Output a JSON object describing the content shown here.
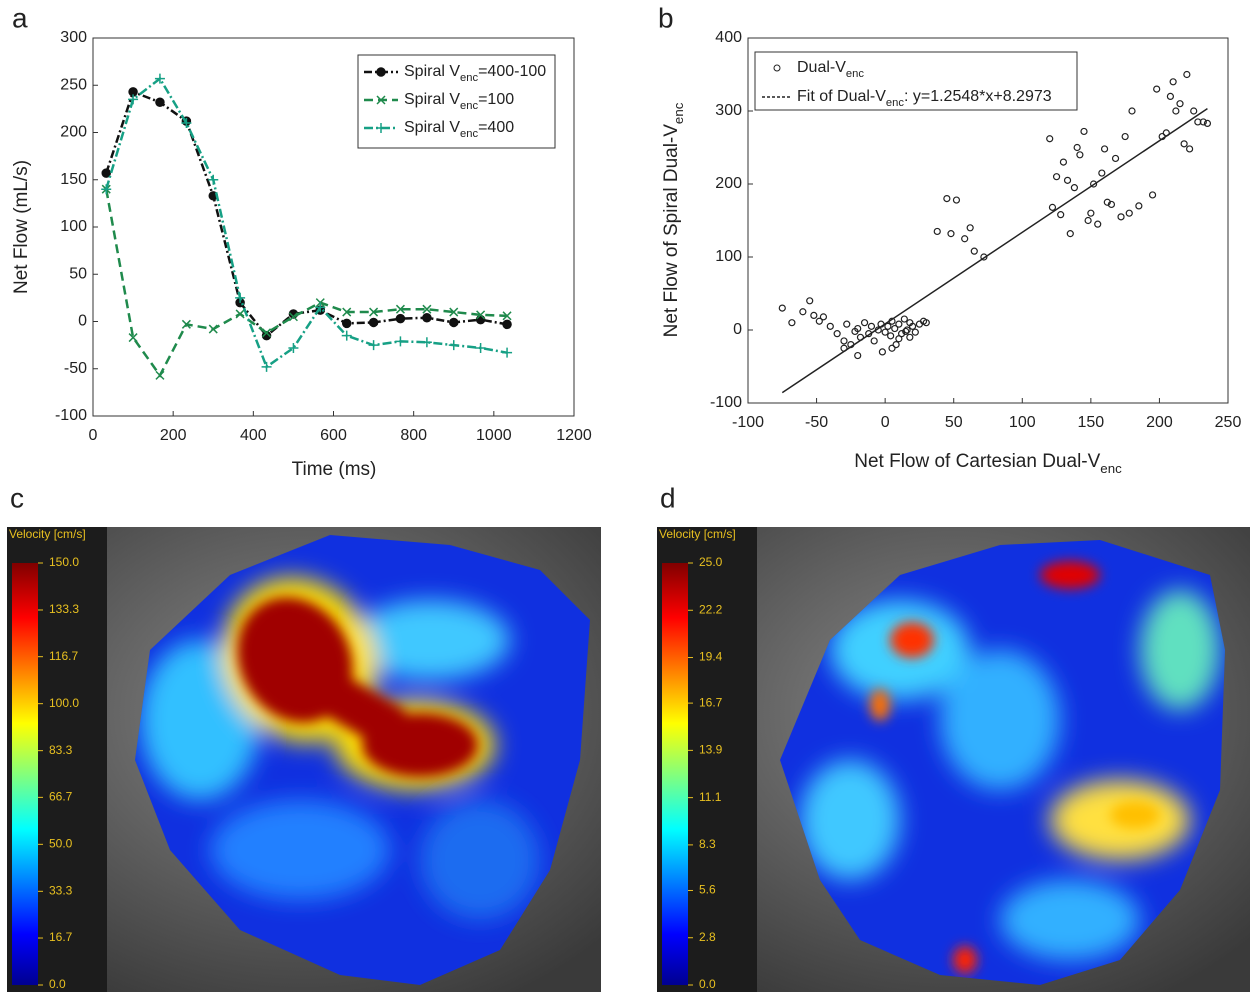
{
  "chart_data": [
    {
      "type": "line",
      "panel": "a",
      "x_label": "Time (ms)",
      "y_label": "Net Flow (mL/s)",
      "xlim": [
        0,
        1200
      ],
      "xticks": [
        0,
        200,
        400,
        600,
        800,
        1000,
        1200
      ],
      "ylim": [
        -100,
        300
      ],
      "yticks": [
        -100,
        -50,
        0,
        50,
        100,
        150,
        200,
        250,
        300
      ],
      "x": [
        33,
        100,
        167,
        233,
        300,
        367,
        433,
        500,
        567,
        633,
        700,
        767,
        833,
        900,
        967,
        1033
      ],
      "series": [
        {
          "name": "Spiral V",
          "name_sub": "enc",
          "name_after": "=400-100",
          "color": "#111111",
          "dash": "8,3,2,3",
          "marker": "circle",
          "values": [
            157,
            243,
            232,
            212,
            133,
            20,
            -15,
            8,
            12,
            -2,
            -1,
            3,
            4,
            -1,
            2,
            -3
          ]
        },
        {
          "name": "Spiral V",
          "name_sub": "enc",
          "name_after": "=100",
          "color": "#1f8a4c",
          "dash": "9,5",
          "marker": "x",
          "values": [
            140,
            -17,
            -57,
            -3,
            -8,
            8,
            -12,
            5,
            20,
            10,
            10,
            13,
            13,
            10,
            7,
            6
          ]
        },
        {
          "name": "Spiral V",
          "name_sub": "enc",
          "name_after": "=400",
          "color": "#16a085",
          "dash": "9,3,2,3",
          "marker": "plus",
          "values": [
            140,
            235,
            257,
            210,
            150,
            25,
            -48,
            -28,
            15,
            -15,
            -25,
            -21,
            -22,
            -25,
            -28,
            -33
          ]
        }
      ]
    },
    {
      "type": "scatter",
      "panel": "b",
      "x_label": "Net Flow of Cartesian Dual-V",
      "x_label_sub": "enc",
      "y_label": "Net Flow of Spiral Dual-V",
      "y_label_sub": "enc",
      "xlim": [
        -100,
        250
      ],
      "xticks": [
        -100,
        -50,
        0,
        50,
        100,
        150,
        200,
        250
      ],
      "ylim": [
        -100,
        400
      ],
      "yticks": [
        -100,
        0,
        100,
        200,
        300,
        400
      ],
      "series": [
        {
          "name": "Dual-V",
          "name_sub": "enc",
          "color": "#222222",
          "marker": "circle",
          "x": [
            -75,
            -68,
            -60,
            -55,
            -52,
            -48,
            -45,
            -40,
            -35,
            -30,
            -28,
            -25,
            -22,
            -20,
            -18,
            -15,
            -12,
            -10,
            -8,
            -5,
            -3,
            0,
            2,
            4,
            5,
            7,
            8,
            10,
            12,
            14,
            16,
            18,
            20,
            22,
            25,
            28,
            30,
            -30,
            -20,
            -2,
            5,
            10,
            15,
            18,
            38,
            45,
            48,
            52,
            58,
            62,
            65,
            72,
            120,
            122,
            125,
            128,
            130,
            133,
            135,
            138,
            140,
            142,
            145,
            148,
            150,
            152,
            155,
            158,
            160,
            162,
            165,
            168,
            172,
            175,
            178,
            180,
            185,
            195,
            198,
            202,
            205,
            208,
            210,
            212,
            215,
            218,
            220,
            222,
            225,
            228,
            232,
            235
          ],
          "values": [
            30,
            10,
            25,
            40,
            20,
            12,
            18,
            5,
            -5,
            -15,
            8,
            -20,
            -2,
            2,
            -10,
            10,
            -5,
            5,
            -15,
            0,
            8,
            -3,
            5,
            -8,
            12,
            2,
            -20,
            8,
            -5,
            15,
            0,
            -10,
            5,
            -3,
            8,
            12,
            10,
            -25,
            -35,
            -30,
            -25,
            -12,
            -2,
            10,
            135,
            180,
            132,
            178,
            125,
            140,
            108,
            100,
            262,
            168,
            210,
            158,
            230,
            205,
            132,
            195,
            250,
            240,
            272,
            150,
            160,
            200,
            145,
            215,
            248,
            175,
            172,
            235,
            155,
            265,
            160,
            300,
            170,
            185,
            330,
            265,
            270,
            320,
            340,
            300,
            310,
            255,
            350,
            248,
            300,
            285,
            285,
            283
          ]
        },
        {
          "name": "Fit of Dual-V",
          "name_sub": "enc",
          "name_after": ": y=1.2548*x+8.2973",
          "color": "#222222",
          "style": "line",
          "x": [
            -75,
            235
          ],
          "values": [
            -85.8,
            303.2
          ]
        }
      ]
    },
    {
      "type": "image",
      "panel": "c",
      "colorbar_label": "Velocity [cm/s]",
      "clim": [
        0,
        150
      ],
      "colorbar_ticks": [
        {
          "value": 150,
          "label": "150.0"
        },
        133.3,
        116.7,
        {
          "value": 100,
          "label": "100.0"
        },
        83.3,
        66.7,
        {
          "value": 50,
          "label": "50.0"
        },
        33.3,
        16.7,
        {
          "value": 0,
          "label": "0.0"
        }
      ]
    },
    {
      "type": "image",
      "panel": "d",
      "colorbar_label": "Velocity [cm/s]",
      "clim": [
        0,
        25
      ],
      "colorbar_ticks": [
        {
          "value": 25,
          "label": "25.0"
        },
        22.2,
        19.4,
        16.7,
        13.9,
        11.1,
        8.3,
        5.6,
        2.8,
        {
          "value": 0,
          "label": "0.0"
        }
      ]
    }
  ]
}
